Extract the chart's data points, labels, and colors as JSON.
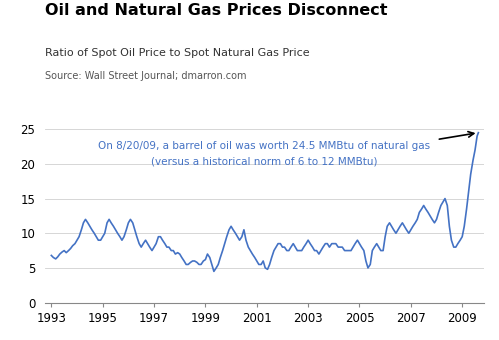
{
  "title": "Oil and Natural Gas Prices Disconnect",
  "subtitle": "Ratio of Spot Oil Price to Spot Natural Gas Price",
  "source": "Source: Wall Street Journal; dmarron.com",
  "annotation_line1": "On 8/20/09, a barrel of oil was worth 24.5 MMBtu of natural gas",
  "annotation_line2": "(versus a historical norm of 6 to 12 MMBtu)",
  "annotation_color": "#4472C4",
  "line_color": "#4472C4",
  "line_width": 1.2,
  "background_color": "#FFFFFF",
  "ylim": [
    0,
    25
  ],
  "yticks": [
    0,
    5,
    10,
    15,
    20,
    25
  ],
  "xlim_start": 1992.75,
  "xlim_end": 2009.85,
  "xtick_years": [
    1993,
    1995,
    1997,
    1999,
    2001,
    2003,
    2005,
    2007,
    2009
  ],
  "dates": [
    1993.0,
    1993.08,
    1993.17,
    1993.25,
    1993.33,
    1993.42,
    1993.5,
    1993.58,
    1993.67,
    1993.75,
    1993.83,
    1993.92,
    1994.0,
    1994.08,
    1994.17,
    1994.25,
    1994.33,
    1994.42,
    1994.5,
    1994.58,
    1994.67,
    1994.75,
    1994.83,
    1994.92,
    1995.0,
    1995.08,
    1995.17,
    1995.25,
    1995.33,
    1995.42,
    1995.5,
    1995.58,
    1995.67,
    1995.75,
    1995.83,
    1995.92,
    1996.0,
    1996.08,
    1996.17,
    1996.25,
    1996.33,
    1996.42,
    1996.5,
    1996.58,
    1996.67,
    1996.75,
    1996.83,
    1996.92,
    1997.0,
    1997.08,
    1997.17,
    1997.25,
    1997.33,
    1997.42,
    1997.5,
    1997.58,
    1997.67,
    1997.75,
    1997.83,
    1997.92,
    1998.0,
    1998.08,
    1998.17,
    1998.25,
    1998.33,
    1998.42,
    1998.5,
    1998.58,
    1998.67,
    1998.75,
    1998.83,
    1998.92,
    1999.0,
    1999.08,
    1999.17,
    1999.25,
    1999.33,
    1999.42,
    1999.5,
    1999.58,
    1999.67,
    1999.75,
    1999.83,
    1999.92,
    2000.0,
    2000.08,
    2000.17,
    2000.25,
    2000.33,
    2000.42,
    2000.5,
    2000.58,
    2000.67,
    2000.75,
    2000.83,
    2000.92,
    2001.0,
    2001.08,
    2001.17,
    2001.25,
    2001.33,
    2001.42,
    2001.5,
    2001.58,
    2001.67,
    2001.75,
    2001.83,
    2001.92,
    2002.0,
    2002.08,
    2002.17,
    2002.25,
    2002.33,
    2002.42,
    2002.5,
    2002.58,
    2002.67,
    2002.75,
    2002.83,
    2002.92,
    2003.0,
    2003.08,
    2003.17,
    2003.25,
    2003.33,
    2003.42,
    2003.5,
    2003.58,
    2003.67,
    2003.75,
    2003.83,
    2003.92,
    2004.0,
    2004.08,
    2004.17,
    2004.25,
    2004.33,
    2004.42,
    2004.5,
    2004.58,
    2004.67,
    2004.75,
    2004.83,
    2004.92,
    2005.0,
    2005.08,
    2005.17,
    2005.25,
    2005.33,
    2005.42,
    2005.5,
    2005.58,
    2005.67,
    2005.75,
    2005.83,
    2005.92,
    2006.0,
    2006.08,
    2006.17,
    2006.25,
    2006.33,
    2006.42,
    2006.5,
    2006.58,
    2006.67,
    2006.75,
    2006.83,
    2006.92,
    2007.0,
    2007.08,
    2007.17,
    2007.25,
    2007.33,
    2007.42,
    2007.5,
    2007.58,
    2007.67,
    2007.75,
    2007.83,
    2007.92,
    2008.0,
    2008.08,
    2008.17,
    2008.25,
    2008.33,
    2008.42,
    2008.5,
    2008.58,
    2008.67,
    2008.75,
    2008.83,
    2008.92,
    2009.0,
    2009.08,
    2009.17,
    2009.25,
    2009.33,
    2009.42,
    2009.5,
    2009.58,
    2009.63
  ],
  "values": [
    6.8,
    6.5,
    6.3,
    6.6,
    7.0,
    7.3,
    7.5,
    7.2,
    7.5,
    7.8,
    8.2,
    8.5,
    9.0,
    9.5,
    10.5,
    11.5,
    12.0,
    11.5,
    11.0,
    10.5,
    10.0,
    9.5,
    9.0,
    9.0,
    9.5,
    10.0,
    11.5,
    12.0,
    11.5,
    11.0,
    10.5,
    10.0,
    9.5,
    9.0,
    9.5,
    10.5,
    11.5,
    12.0,
    11.5,
    10.5,
    9.5,
    8.5,
    8.0,
    8.5,
    9.0,
    8.5,
    8.0,
    7.5,
    8.0,
    8.5,
    9.5,
    9.5,
    9.0,
    8.5,
    8.0,
    8.0,
    7.5,
    7.5,
    7.0,
    7.2,
    7.0,
    6.5,
    6.0,
    5.5,
    5.5,
    5.8,
    6.0,
    6.0,
    5.8,
    5.5,
    5.5,
    6.0,
    6.2,
    7.0,
    6.5,
    5.5,
    4.5,
    5.0,
    5.5,
    6.5,
    7.5,
    8.5,
    9.5,
    10.5,
    11.0,
    10.5,
    10.0,
    9.5,
    9.0,
    9.5,
    10.5,
    9.0,
    8.0,
    7.5,
    7.0,
    6.5,
    6.0,
    5.5,
    5.5,
    6.0,
    5.0,
    4.8,
    5.5,
    6.5,
    7.5,
    8.0,
    8.5,
    8.5,
    8.0,
    8.0,
    7.5,
    7.5,
    8.0,
    8.5,
    8.0,
    7.5,
    7.5,
    7.5,
    8.0,
    8.5,
    9.0,
    8.5,
    8.0,
    7.5,
    7.5,
    7.0,
    7.5,
    8.0,
    8.5,
    8.5,
    8.0,
    8.5,
    8.5,
    8.5,
    8.0,
    8.0,
    8.0,
    7.5,
    7.5,
    7.5,
    7.5,
    8.0,
    8.5,
    9.0,
    8.5,
    8.0,
    7.5,
    6.0,
    5.0,
    5.5,
    7.5,
    8.0,
    8.5,
    8.0,
    7.5,
    7.5,
    9.5,
    11.0,
    11.5,
    11.0,
    10.5,
    10.0,
    10.5,
    11.0,
    11.5,
    11.0,
    10.5,
    10.0,
    10.5,
    11.0,
    11.5,
    12.0,
    13.0,
    13.5,
    14.0,
    13.5,
    13.0,
    12.5,
    12.0,
    11.5,
    12.0,
    13.0,
    14.0,
    14.5,
    15.0,
    14.0,
    11.0,
    9.0,
    8.0,
    8.0,
    8.5,
    9.0,
    9.5,
    11.0,
    13.5,
    16.0,
    18.5,
    20.5,
    22.0,
    24.0,
    24.5
  ]
}
